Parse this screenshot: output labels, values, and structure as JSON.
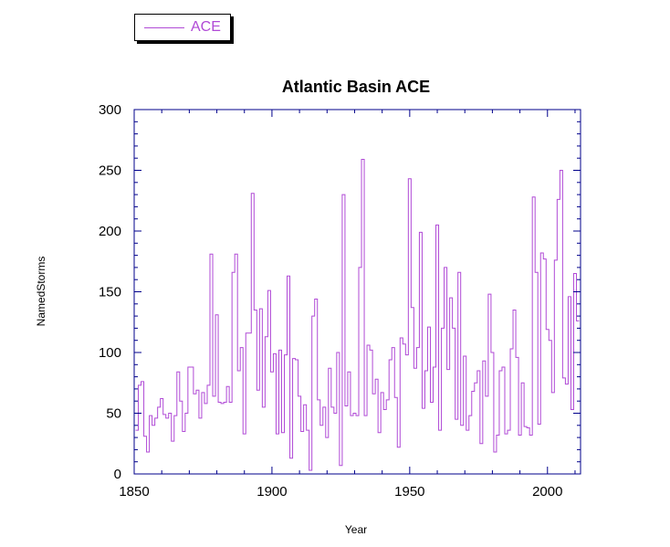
{
  "chart_data": {
    "type": "line",
    "step": true,
    "title": "Atlantic Basin ACE",
    "xlabel": "Year",
    "ylabel": "NamedStorms",
    "xlim": [
      1850,
      2012
    ],
    "ylim": [
      0,
      300
    ],
    "xticks": [
      1850,
      1900,
      1950,
      2000
    ],
    "yticks": [
      0,
      50,
      100,
      150,
      200,
      250,
      300
    ],
    "grid": false,
    "legend": {
      "position": "top-left, above plot",
      "entries": [
        "ACE"
      ]
    },
    "colors": {
      "series": "#b04ad6",
      "axes": "#00008b",
      "text": "#000000"
    },
    "series": [
      {
        "name": "ACE",
        "x": [
          1851,
          1852,
          1853,
          1854,
          1855,
          1856,
          1857,
          1858,
          1859,
          1860,
          1861,
          1862,
          1863,
          1864,
          1865,
          1866,
          1867,
          1868,
          1869,
          1870,
          1871,
          1872,
          1873,
          1874,
          1875,
          1876,
          1877,
          1878,
          1879,
          1880,
          1881,
          1882,
          1883,
          1884,
          1885,
          1886,
          1887,
          1888,
          1889,
          1890,
          1891,
          1892,
          1893,
          1894,
          1895,
          1896,
          1897,
          1898,
          1899,
          1900,
          1901,
          1902,
          1903,
          1904,
          1905,
          1906,
          1907,
          1908,
          1909,
          1910,
          1911,
          1912,
          1913,
          1914,
          1915,
          1916,
          1917,
          1918,
          1919,
          1920,
          1921,
          1922,
          1923,
          1924,
          1925,
          1926,
          1927,
          1928,
          1929,
          1930,
          1931,
          1932,
          1933,
          1934,
          1935,
          1936,
          1937,
          1938,
          1939,
          1940,
          1941,
          1942,
          1943,
          1944,
          1945,
          1946,
          1947,
          1948,
          1949,
          1950,
          1951,
          1952,
          1953,
          1954,
          1955,
          1956,
          1957,
          1958,
          1959,
          1960,
          1961,
          1962,
          1963,
          1964,
          1965,
          1966,
          1967,
          1968,
          1969,
          1970,
          1971,
          1972,
          1973,
          1974,
          1975,
          1976,
          1977,
          1978,
          1979,
          1980,
          1981,
          1982,
          1983,
          1984,
          1985,
          1986,
          1987,
          1988,
          1989,
          1990,
          1991,
          1992,
          1993,
          1994,
          1995,
          1996,
          1997,
          1998,
          1999,
          2000,
          2001,
          2002,
          2003,
          2004,
          2005,
          2006,
          2007,
          2008,
          2009,
          2010,
          2011
        ],
        "values": [
          36,
          73,
          76,
          31,
          18,
          48,
          40,
          46,
          55,
          62,
          49,
          46,
          50,
          27,
          48,
          84,
          60,
          35,
          50,
          88,
          88,
          66,
          69,
          46,
          67,
          58,
          73,
          181,
          64,
          131,
          59,
          58,
          59,
          72,
          59,
          166,
          181,
          85,
          104,
          33,
          116,
          116,
          231,
          135,
          69,
          136,
          55,
          113,
          151,
          84,
          99,
          33,
          102,
          34,
          98,
          163,
          13,
          95,
          94,
          64,
          35,
          57,
          36,
          3,
          130,
          144,
          61,
          40,
          55,
          30,
          87,
          55,
          50,
          100,
          7,
          230,
          56,
          84,
          48,
          50,
          48,
          170,
          259,
          48,
          106,
          102,
          66,
          78,
          34,
          67,
          53,
          61,
          94,
          104,
          63,
          22,
          112,
          107,
          98,
          243,
          137,
          87,
          104,
          199,
          54,
          85,
          121,
          59,
          88,
          205,
          36,
          120,
          170,
          86,
          145,
          120,
          45,
          166,
          40,
          97,
          36,
          48,
          68,
          75,
          85,
          25,
          93,
          64,
          148,
          100,
          18,
          32,
          85,
          88,
          33,
          36,
          103,
          135,
          96,
          32,
          75,
          39,
          38,
          32,
          228,
          166,
          41,
          182,
          177,
          119,
          110,
          67,
          176,
          226,
          250,
          79,
          74,
          146,
          53,
          165,
          126
        ]
      }
    ]
  }
}
